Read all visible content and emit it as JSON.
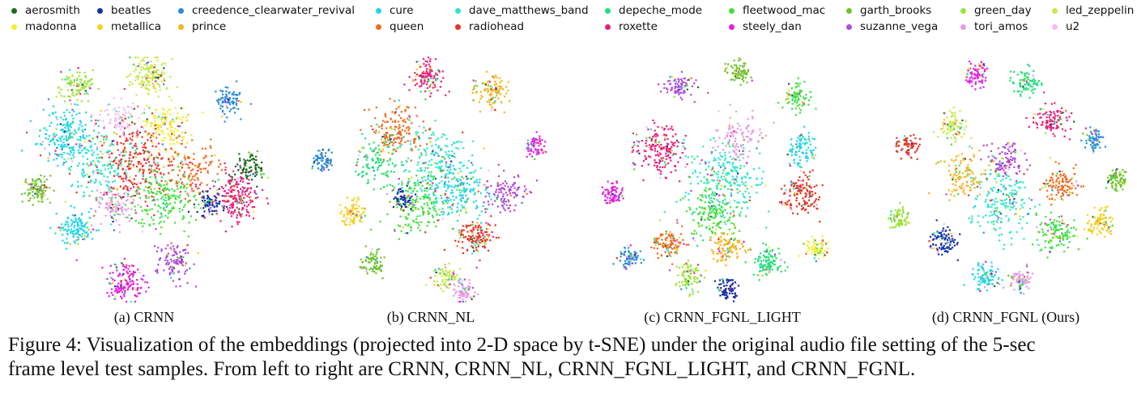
{
  "legend": [
    {
      "name": "aerosmith",
      "color": "#1b6b1f"
    },
    {
      "name": "beatles",
      "color": "#1531a8"
    },
    {
      "name": "creedence_clearwater_revival",
      "color": "#2a8be0"
    },
    {
      "name": "cure",
      "color": "#22d6e6"
    },
    {
      "name": "dave_matthews_band",
      "color": "#2ee6c9"
    },
    {
      "name": "depeche_mode",
      "color": "#22e07a"
    },
    {
      "name": "fleetwood_mac",
      "color": "#3fe23a"
    },
    {
      "name": "garth_brooks",
      "color": "#6fc22b"
    },
    {
      "name": "green_day",
      "color": "#9be43c"
    },
    {
      "name": "led_zeppelin",
      "color": "#c6ea4a"
    },
    {
      "name": "madonna",
      "color": "#f2ef2a"
    },
    {
      "name": "metallica",
      "color": "#f5d21c"
    },
    {
      "name": "prince",
      "color": "#f7b41f"
    },
    {
      "name": "queen",
      "color": "#f26b1d"
    },
    {
      "name": "radiohead",
      "color": "#ea3322"
    },
    {
      "name": "roxette",
      "color": "#ea1f78"
    },
    {
      "name": "steely_dan",
      "color": "#e41fe0"
    },
    {
      "name": "suzanne_vega",
      "color": "#b04be0"
    },
    {
      "name": "tori_amos",
      "color": "#e59be8"
    },
    {
      "name": "u2",
      "color": "#f2bff2"
    }
  ],
  "chart_data": [
    {
      "type": "scatter",
      "title": "(a) CRNN",
      "xlabel": "",
      "ylabel": "",
      "grid": false,
      "series_names": [
        "aerosmith",
        "beatles",
        "creedence_clearwater_revival",
        "cure",
        "dave_matthews_band",
        "depeche_mode",
        "fleetwood_mac",
        "garth_brooks",
        "green_day",
        "led_zeppelin",
        "madonna",
        "metallica",
        "prince",
        "queen",
        "radiohead",
        "roxette",
        "steely_dan",
        "suzanne_vega",
        "tori_amos",
        "u2"
      ],
      "clusters": [
        {
          "series": "led_zeppelin",
          "x": 0.52,
          "y": 0.92,
          "spread": 0.07,
          "n": 160
        },
        {
          "series": "green_day",
          "x": 0.22,
          "y": 0.88,
          "spread": 0.06,
          "n": 110
        },
        {
          "series": "creedence_clearwater_revival",
          "x": 0.84,
          "y": 0.82,
          "spread": 0.05,
          "n": 90
        },
        {
          "series": "garth_brooks",
          "x": 0.06,
          "y": 0.46,
          "spread": 0.05,
          "n": 110
        },
        {
          "series": "cure",
          "x": 0.18,
          "y": 0.68,
          "spread": 0.1,
          "n": 220
        },
        {
          "series": "madonna",
          "x": 0.58,
          "y": 0.72,
          "spread": 0.08,
          "n": 140
        },
        {
          "series": "aerosmith",
          "x": 0.92,
          "y": 0.55,
          "spread": 0.06,
          "n": 90
        },
        {
          "series": "roxette",
          "x": 0.88,
          "y": 0.42,
          "spread": 0.08,
          "n": 200
        },
        {
          "series": "beatles",
          "x": 0.76,
          "y": 0.4,
          "spread": 0.05,
          "n": 80
        },
        {
          "series": "tori_amos",
          "x": 0.38,
          "y": 0.4,
          "spread": 0.08,
          "n": 130
        },
        {
          "series": "cure",
          "x": 0.22,
          "y": 0.3,
          "spread": 0.07,
          "n": 140
        },
        {
          "series": "steely_dan",
          "x": 0.42,
          "y": 0.08,
          "spread": 0.07,
          "n": 150
        },
        {
          "series": "suzanne_vega",
          "x": 0.62,
          "y": 0.16,
          "spread": 0.07,
          "n": 110
        },
        {
          "series": "radiohead",
          "x": 0.46,
          "y": 0.58,
          "spread": 0.14,
          "n": 280
        },
        {
          "series": "fleetwood_mac",
          "x": 0.58,
          "y": 0.42,
          "spread": 0.12,
          "n": 200
        },
        {
          "series": "queen",
          "x": 0.7,
          "y": 0.55,
          "spread": 0.09,
          "n": 120
        },
        {
          "series": "dave_matthews_band",
          "x": 0.3,
          "y": 0.55,
          "spread": 0.1,
          "n": 140
        },
        {
          "series": "u2",
          "x": 0.4,
          "y": 0.75,
          "spread": 0.07,
          "n": 90
        }
      ]
    },
    {
      "type": "scatter",
      "title": "(b) CRNN_NL",
      "xlabel": "",
      "ylabel": "",
      "grid": false,
      "series_names": [
        "aerosmith",
        "beatles",
        "creedence_clearwater_revival",
        "cure",
        "dave_matthews_band",
        "depeche_mode",
        "fleetwood_mac",
        "garth_brooks",
        "green_day",
        "led_zeppelin",
        "madonna",
        "metallica",
        "prince",
        "queen",
        "radiohead",
        "roxette",
        "steely_dan",
        "suzanne_vega",
        "tori_amos",
        "u2"
      ],
      "clusters": [
        {
          "series": "roxette",
          "x": 0.48,
          "y": 0.92,
          "spread": 0.06,
          "n": 120
        },
        {
          "series": "prince",
          "x": 0.74,
          "y": 0.86,
          "spread": 0.06,
          "n": 110
        },
        {
          "series": "creedence_clearwater_revival",
          "x": 0.06,
          "y": 0.58,
          "spread": 0.04,
          "n": 70
        },
        {
          "series": "steely_dan",
          "x": 0.92,
          "y": 0.63,
          "spread": 0.04,
          "n": 70
        },
        {
          "series": "metallica",
          "x": 0.18,
          "y": 0.36,
          "spread": 0.05,
          "n": 90
        },
        {
          "series": "garth_brooks",
          "x": 0.26,
          "y": 0.16,
          "spread": 0.04,
          "n": 80
        },
        {
          "series": "led_zeppelin",
          "x": 0.56,
          "y": 0.1,
          "spread": 0.05,
          "n": 90
        },
        {
          "series": "tori_amos",
          "x": 0.63,
          "y": 0.04,
          "spread": 0.04,
          "n": 80
        },
        {
          "series": "radiohead",
          "x": 0.68,
          "y": 0.27,
          "spread": 0.07,
          "n": 140
        },
        {
          "series": "queen",
          "x": 0.36,
          "y": 0.7,
          "spread": 0.1,
          "n": 160
        },
        {
          "series": "dave_matthews_band",
          "x": 0.52,
          "y": 0.55,
          "spread": 0.14,
          "n": 240
        },
        {
          "series": "fleetwood_mac",
          "x": 0.44,
          "y": 0.4,
          "spread": 0.11,
          "n": 180
        },
        {
          "series": "beatles",
          "x": 0.38,
          "y": 0.42,
          "spread": 0.04,
          "n": 60
        },
        {
          "series": "cure",
          "x": 0.62,
          "y": 0.45,
          "spread": 0.1,
          "n": 150
        },
        {
          "series": "suzanne_vega",
          "x": 0.8,
          "y": 0.45,
          "spread": 0.07,
          "n": 110
        },
        {
          "series": "depeche_mode",
          "x": 0.28,
          "y": 0.58,
          "spread": 0.08,
          "n": 110
        }
      ]
    },
    {
      "type": "scatter",
      "title": "(c) CRNN_FGNL_LIGHT",
      "xlabel": "",
      "ylabel": "",
      "grid": false,
      "series_names": [
        "aerosmith",
        "beatles",
        "creedence_clearwater_revival",
        "cure",
        "dave_matthews_band",
        "depeche_mode",
        "fleetwood_mac",
        "garth_brooks",
        "green_day",
        "led_zeppelin",
        "madonna",
        "metallica",
        "prince",
        "queen",
        "radiohead",
        "roxette",
        "steely_dan",
        "suzanne_vega",
        "tori_amos",
        "u2"
      ],
      "clusters": [
        {
          "series": "garth_brooks",
          "x": 0.56,
          "y": 0.94,
          "spread": 0.04,
          "n": 80
        },
        {
          "series": "suzanne_vega",
          "x": 0.32,
          "y": 0.88,
          "spread": 0.05,
          "n": 90
        },
        {
          "series": "fleetwood_mac",
          "x": 0.8,
          "y": 0.84,
          "spread": 0.05,
          "n": 80
        },
        {
          "series": "roxette",
          "x": 0.24,
          "y": 0.62,
          "spread": 0.09,
          "n": 180
        },
        {
          "series": "cure",
          "x": 0.82,
          "y": 0.62,
          "spread": 0.06,
          "n": 90
        },
        {
          "series": "steely_dan",
          "x": 0.05,
          "y": 0.44,
          "spread": 0.04,
          "n": 80
        },
        {
          "series": "radiohead",
          "x": 0.82,
          "y": 0.44,
          "spread": 0.07,
          "n": 140
        },
        {
          "series": "creedence_clearwater_revival",
          "x": 0.12,
          "y": 0.18,
          "spread": 0.04,
          "n": 80
        },
        {
          "series": "madonna",
          "x": 0.88,
          "y": 0.22,
          "spread": 0.04,
          "n": 80
        },
        {
          "series": "queen",
          "x": 0.28,
          "y": 0.24,
          "spread": 0.06,
          "n": 110
        },
        {
          "series": "depeche_mode",
          "x": 0.68,
          "y": 0.16,
          "spread": 0.06,
          "n": 110
        },
        {
          "series": "beatles",
          "x": 0.52,
          "y": 0.05,
          "spread": 0.04,
          "n": 80
        },
        {
          "series": "green_day",
          "x": 0.36,
          "y": 0.1,
          "spread": 0.05,
          "n": 90
        },
        {
          "series": "dave_matthews_band",
          "x": 0.5,
          "y": 0.5,
          "spread": 0.14,
          "n": 260
        },
        {
          "series": "fleetwood_mac",
          "x": 0.46,
          "y": 0.36,
          "spread": 0.1,
          "n": 160
        },
        {
          "series": "prince",
          "x": 0.52,
          "y": 0.22,
          "spread": 0.06,
          "n": 100
        },
        {
          "series": "tori_amos",
          "x": 0.56,
          "y": 0.68,
          "spread": 0.08,
          "n": 100
        }
      ]
    },
    {
      "type": "scatter",
      "title": "(d) CRNN_FGNL (Ours)",
      "xlabel": "",
      "ylabel": "",
      "grid": false,
      "series_names": [
        "aerosmith",
        "beatles",
        "creedence_clearwater_revival",
        "cure",
        "dave_matthews_band",
        "depeche_mode",
        "fleetwood_mac",
        "garth_brooks",
        "green_day",
        "led_zeppelin",
        "madonna",
        "metallica",
        "prince",
        "queen",
        "radiohead",
        "roxette",
        "steely_dan",
        "suzanne_vega",
        "tori_amos",
        "u2"
      ],
      "clusters": [
        {
          "series": "steely_dan",
          "x": 0.38,
          "y": 0.93,
          "spread": 0.04,
          "n": 80
        },
        {
          "series": "depeche_mode",
          "x": 0.58,
          "y": 0.9,
          "spread": 0.05,
          "n": 90
        },
        {
          "series": "roxette",
          "x": 0.68,
          "y": 0.74,
          "spread": 0.06,
          "n": 110
        },
        {
          "series": "led_zeppelin",
          "x": 0.28,
          "y": 0.72,
          "spread": 0.05,
          "n": 90
        },
        {
          "series": "creedence_clearwater_revival",
          "x": 0.85,
          "y": 0.66,
          "spread": 0.04,
          "n": 70
        },
        {
          "series": "radiohead",
          "x": 0.1,
          "y": 0.64,
          "spread": 0.04,
          "n": 70
        },
        {
          "series": "garth_brooks",
          "x": 0.95,
          "y": 0.5,
          "spread": 0.04,
          "n": 80
        },
        {
          "series": "green_day",
          "x": 0.06,
          "y": 0.34,
          "spread": 0.04,
          "n": 80
        },
        {
          "series": "metallica",
          "x": 0.88,
          "y": 0.32,
          "spread": 0.05,
          "n": 100
        },
        {
          "series": "beatles",
          "x": 0.25,
          "y": 0.25,
          "spread": 0.05,
          "n": 100
        },
        {
          "series": "cure",
          "x": 0.41,
          "y": 0.1,
          "spread": 0.05,
          "n": 100
        },
        {
          "series": "tori_amos",
          "x": 0.56,
          "y": 0.09,
          "spread": 0.04,
          "n": 80
        },
        {
          "series": "queen",
          "x": 0.72,
          "y": 0.48,
          "spread": 0.07,
          "n": 120
        },
        {
          "series": "suzanne_vega",
          "x": 0.5,
          "y": 0.58,
          "spread": 0.07,
          "n": 110
        },
        {
          "series": "dave_matthews_band",
          "x": 0.48,
          "y": 0.4,
          "spread": 0.12,
          "n": 200
        },
        {
          "series": "fleetwood_mac",
          "x": 0.7,
          "y": 0.28,
          "spread": 0.07,
          "n": 120
        },
        {
          "series": "prince",
          "x": 0.32,
          "y": 0.52,
          "spread": 0.08,
          "n": 120
        }
      ]
    }
  ],
  "caption": {
    "line1": "Figure 4: Visualization of the embeddings (projected into 2-D space by t-SNE) under the original audio file setting of the 5-sec",
    "line2": "frame level test samples. From left to right are CRNN, CRNN_NL, CRNN_FGNL_LIGHT, and CRNN_FGNL."
  }
}
